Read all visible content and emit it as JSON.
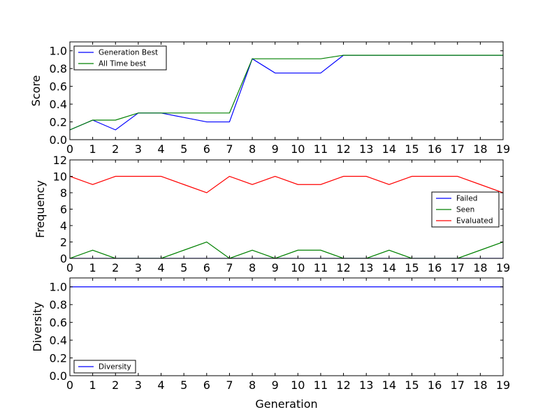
{
  "chart_data": [
    {
      "type": "line",
      "ylabel": "Score",
      "xlabel": "",
      "xlim": [
        0,
        19
      ],
      "ylim": [
        0,
        1.1
      ],
      "x": [
        0,
        1,
        2,
        3,
        4,
        5,
        6,
        7,
        8,
        9,
        10,
        11,
        12,
        13,
        14,
        15,
        16,
        17,
        18,
        19
      ],
      "xticks": [
        "0",
        "1",
        "2",
        "3",
        "4",
        "5",
        "6",
        "7",
        "8",
        "9",
        "10",
        "11",
        "12",
        "13",
        "14",
        "15",
        "16",
        "17",
        "18",
        "19"
      ],
      "yticks": [
        0.0,
        0.2,
        0.4,
        0.6,
        0.8,
        1.0
      ],
      "ytick_labels": [
        "0.0",
        "0.2",
        "0.4",
        "0.6",
        "0.8",
        "1.0"
      ],
      "legend_position": "top-left",
      "series": [
        {
          "name": "Generation Best",
          "color": "#0000ff",
          "values": [
            0.11,
            0.22,
            0.11,
            0.3,
            0.3,
            0.25,
            0.2,
            0.2,
            0.91,
            0.75,
            0.75,
            0.75,
            0.95,
            0.95,
            0.95,
            0.95,
            0.95,
            0.95,
            0.95,
            0.95
          ]
        },
        {
          "name": "All Time best",
          "color": "#008000",
          "values": [
            0.11,
            0.22,
            0.22,
            0.3,
            0.3,
            0.3,
            0.3,
            0.3,
            0.91,
            0.91,
            0.91,
            0.91,
            0.95,
            0.95,
            0.95,
            0.95,
            0.95,
            0.95,
            0.95,
            0.95
          ]
        }
      ]
    },
    {
      "type": "line",
      "ylabel": "Frequency",
      "xlabel": "",
      "xlim": [
        0,
        19
      ],
      "ylim": [
        0,
        12
      ],
      "x": [
        0,
        1,
        2,
        3,
        4,
        5,
        6,
        7,
        8,
        9,
        10,
        11,
        12,
        13,
        14,
        15,
        16,
        17,
        18,
        19
      ],
      "xticks": [
        "0",
        "1",
        "2",
        "3",
        "4",
        "5",
        "6",
        "7",
        "8",
        "9",
        "10",
        "11",
        "12",
        "13",
        "14",
        "15",
        "16",
        "17",
        "18",
        "19"
      ],
      "yticks": [
        0,
        2,
        4,
        6,
        8,
        10,
        12
      ],
      "ytick_labels": [
        "0",
        "2",
        "4",
        "6",
        "8",
        "10",
        "12"
      ],
      "legend_position": "center-right",
      "series": [
        {
          "name": "Failed",
          "color": "#0000ff",
          "values": [
            0,
            0,
            0,
            0,
            0,
            0,
            0,
            0,
            0,
            0,
            0,
            0,
            0,
            0,
            0,
            0,
            0,
            0,
            0,
            0
          ]
        },
        {
          "name": "Seen",
          "color": "#008000",
          "values": [
            0,
            1,
            0,
            0,
            0,
            1,
            2,
            0,
            1,
            0,
            1,
            1,
            0,
            0,
            1,
            0,
            0,
            0,
            1,
            2
          ]
        },
        {
          "name": "Evaluated",
          "color": "#ff0000",
          "values": [
            10,
            9,
            10,
            10,
            10,
            9,
            8,
            10,
            9,
            10,
            9,
            9,
            10,
            10,
            9,
            10,
            10,
            10,
            9,
            8
          ]
        }
      ]
    },
    {
      "type": "line",
      "ylabel": "Diversity",
      "xlabel": "Generation",
      "xlim": [
        0,
        19
      ],
      "ylim": [
        0,
        1.1
      ],
      "x": [
        0,
        1,
        2,
        3,
        4,
        5,
        6,
        7,
        8,
        9,
        10,
        11,
        12,
        13,
        14,
        15,
        16,
        17,
        18,
        19
      ],
      "xticks": [
        "0",
        "1",
        "2",
        "3",
        "4",
        "5",
        "6",
        "7",
        "8",
        "9",
        "10",
        "11",
        "12",
        "13",
        "14",
        "15",
        "16",
        "17",
        "18",
        "19"
      ],
      "yticks": [
        0.0,
        0.2,
        0.4,
        0.6,
        0.8,
        1.0
      ],
      "ytick_labels": [
        "0.0",
        "0.2",
        "0.4",
        "0.6",
        "0.8",
        "1.0"
      ],
      "legend_position": "bottom-left",
      "series": [
        {
          "name": "Diversity",
          "color": "#0000ff",
          "values": [
            1,
            1,
            1,
            1,
            1,
            1,
            1,
            1,
            1,
            1,
            1,
            1,
            1,
            1,
            1,
            1,
            1,
            1,
            1,
            1
          ]
        }
      ]
    }
  ]
}
